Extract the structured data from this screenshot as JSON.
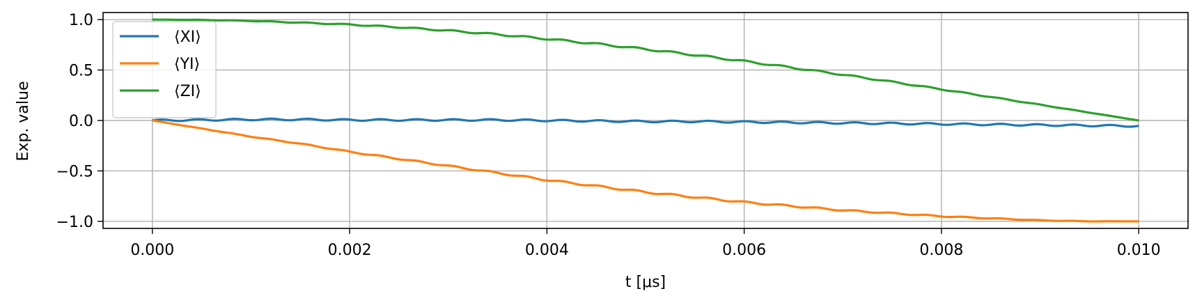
{
  "chart_data": {
    "type": "line",
    "xlabel": "t [μs]",
    "ylabel": "Exp. value",
    "xlim": [
      -0.0005,
      0.0105
    ],
    "ylim": [
      -1.07,
      1.07
    ],
    "xticks": [
      0.0,
      0.002,
      0.004,
      0.006,
      0.008,
      0.01
    ],
    "xtick_labels": [
      "0.000",
      "0.002",
      "0.004",
      "0.006",
      "0.008",
      "0.010"
    ],
    "yticks": [
      1.0,
      0.5,
      0.0,
      -0.5,
      -1.0
    ],
    "ytick_labels": [
      "1.0",
      "0.5",
      "0.0",
      "−0.5",
      "−1.0"
    ],
    "grid": true,
    "legend_position": "top-left",
    "series": [
      {
        "name": "⟨XI⟩",
        "color": "#1f77b4",
        "x": [
          0.0,
          0.0005,
          0.001,
          0.0015,
          0.002,
          0.0025,
          0.003,
          0.0035,
          0.004,
          0.0045,
          0.005,
          0.0055,
          0.006,
          0.0065,
          0.007,
          0.0075,
          0.008,
          0.0085,
          0.009,
          0.0095,
          0.01
        ],
        "y": [
          0.0,
          0.005,
          0.01,
          0.01,
          0.005,
          0.005,
          0.005,
          0.005,
          0.0,
          -0.005,
          -0.01,
          -0.01,
          -0.015,
          -0.02,
          -0.025,
          -0.03,
          -0.035,
          -0.04,
          -0.045,
          -0.05,
          -0.055
        ]
      },
      {
        "name": "⟨YI⟩",
        "color": "#ff7f0e",
        "x": [
          0.0,
          0.0005,
          0.001,
          0.0015,
          0.002,
          0.0025,
          0.003,
          0.0035,
          0.004,
          0.0045,
          0.005,
          0.0055,
          0.006,
          0.0065,
          0.007,
          0.0075,
          0.008,
          0.0085,
          0.009,
          0.0095,
          0.01
        ],
        "y": [
          0.0,
          -0.08,
          -0.16,
          -0.23,
          -0.31,
          -0.38,
          -0.45,
          -0.52,
          -0.59,
          -0.65,
          -0.71,
          -0.76,
          -0.81,
          -0.85,
          -0.89,
          -0.92,
          -0.95,
          -0.97,
          -0.99,
          -1.0,
          -1.0
        ]
      },
      {
        "name": "⟨ZI⟩",
        "color": "#2ca02c",
        "x": [
          0.0,
          0.0005,
          0.001,
          0.0015,
          0.002,
          0.0025,
          0.003,
          0.0035,
          0.004,
          0.0045,
          0.005,
          0.0055,
          0.006,
          0.0065,
          0.007,
          0.0075,
          0.008,
          0.0085,
          0.009,
          0.0095,
          0.01
        ],
        "y": [
          1.0,
          0.997,
          0.987,
          0.97,
          0.951,
          0.924,
          0.891,
          0.853,
          0.809,
          0.76,
          0.707,
          0.649,
          0.588,
          0.522,
          0.454,
          0.383,
          0.309,
          0.233,
          0.156,
          0.078,
          0.0
        ]
      }
    ]
  }
}
